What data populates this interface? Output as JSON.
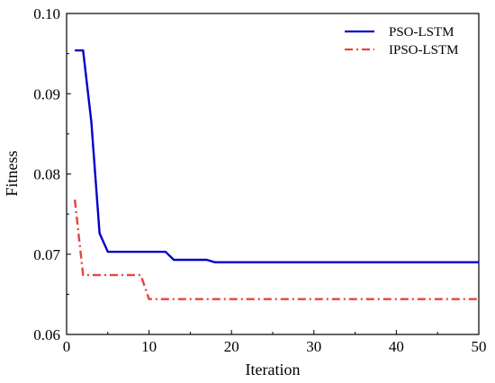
{
  "chart_data": {
    "type": "line",
    "title": "",
    "xlabel": "Iteration",
    "ylabel": "Fitness",
    "xlim": [
      0,
      50
    ],
    "ylim": [
      0.06,
      0.1
    ],
    "xticks": [
      0,
      10,
      20,
      30,
      40,
      50
    ],
    "xtick_labels": [
      "0",
      "10",
      "20",
      "30",
      "40",
      "50"
    ],
    "yticks": [
      0.06,
      0.07,
      0.08,
      0.09,
      0.1
    ],
    "ytick_labels": [
      "0.06",
      "0.07",
      "0.08",
      "0.09",
      "0.10"
    ],
    "grid": false,
    "legend_position": "top-right",
    "series": [
      {
        "name": "PSO-LSTM",
        "color": "#0000cc",
        "line_style": "solid",
        "x": [
          1,
          2,
          3,
          4,
          5,
          6,
          7,
          8,
          9,
          10,
          11,
          12,
          13,
          14,
          15,
          16,
          17,
          18,
          19,
          20,
          30,
          40,
          50
        ],
        "y": [
          0.0954,
          0.0954,
          0.0865,
          0.0726,
          0.0703,
          0.0703,
          0.0703,
          0.0703,
          0.0703,
          0.0703,
          0.0703,
          0.0703,
          0.0693,
          0.0693,
          0.0693,
          0.0693,
          0.0693,
          0.069,
          0.069,
          0.069,
          0.069,
          0.069,
          0.069
        ]
      },
      {
        "name": "IPSO-LSTM",
        "color": "#e8443a",
        "line_style": "dashdot",
        "x": [
          1,
          2,
          3,
          4,
          5,
          6,
          7,
          8,
          9,
          10,
          11,
          12,
          20,
          30,
          40,
          50
        ],
        "y": [
          0.0768,
          0.0674,
          0.0674,
          0.0674,
          0.0674,
          0.0674,
          0.0674,
          0.0674,
          0.0674,
          0.0644,
          0.0644,
          0.0644,
          0.0644,
          0.0644,
          0.0644,
          0.0644
        ]
      }
    ]
  }
}
